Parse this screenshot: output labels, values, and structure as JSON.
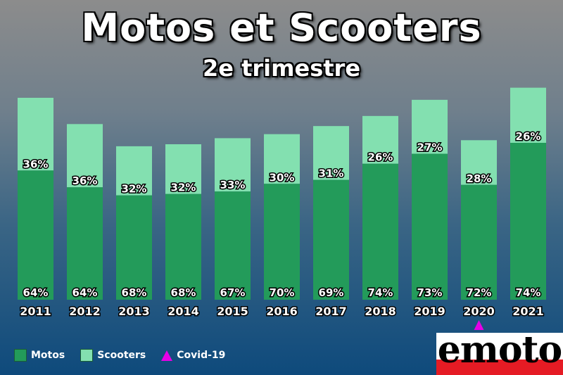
{
  "chart_data": {
    "type": "bar",
    "stacked": true,
    "title": "Motos et Scooters",
    "subtitle": "2e trimestre",
    "categories": [
      "2011",
      "2012",
      "2013",
      "2014",
      "2015",
      "2016",
      "2017",
      "2018",
      "2019",
      "2020",
      "2021"
    ],
    "series": [
      {
        "name": "Motos",
        "color": "#239b5a",
        "percent_labels": [
          "64%",
          "64%",
          "68%",
          "68%",
          "67%",
          "70%",
          "69%",
          "74%",
          "73%",
          "72%",
          "74%"
        ]
      },
      {
        "name": "Scooters",
        "color": "#83e0b0",
        "percent_labels": [
          "36%",
          "36%",
          "32%",
          "32%",
          "33%",
          "30%",
          "31%",
          "26%",
          "27%",
          "28%",
          "26%"
        ]
      }
    ],
    "total_relative": [
      1.0,
      0.87,
      0.76,
      0.77,
      0.8,
      0.82,
      0.86,
      0.91,
      0.99,
      0.79,
      1.05
    ],
    "annotation": {
      "name": "Covid-19",
      "category": "2020",
      "color": "#e600e6"
    },
    "legend_position": "bottom-left"
  },
  "logo": {
    "text": "emoto"
  }
}
